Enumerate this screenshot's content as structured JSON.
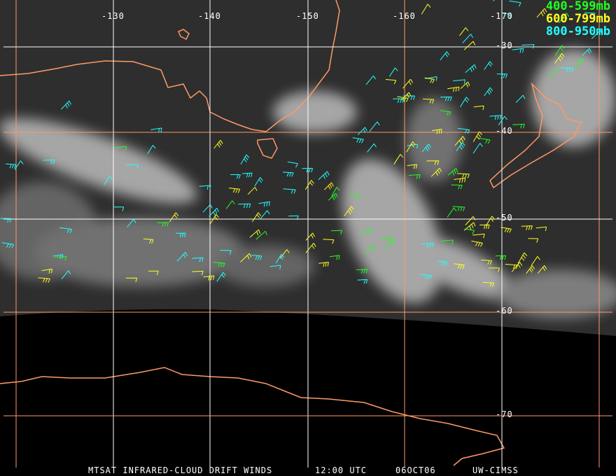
{
  "legend": [
    {
      "label": "400-599mb",
      "color": "#22ff22"
    },
    {
      "label": "600-799mb",
      "color": "#ffff22"
    },
    {
      "label": "800-950mb",
      "color": "#22ffff"
    }
  ],
  "longitude_labels": [
    "-130",
    "-140",
    "-150",
    "-160",
    "-170"
  ],
  "latitude_labels": [
    "-30",
    "-40",
    "-50",
    "-60",
    "-70"
  ],
  "footer": {
    "product": "MTSAT INFRARED-CLOUD DRIFT WINDS",
    "time": "12:00 UTC",
    "date": "06OCT06",
    "source": "UW-CIMSS"
  },
  "colors": {
    "coastline": "#ff9966",
    "grid_orange": "#ff9966",
    "grid_white": "#ffffff"
  }
}
